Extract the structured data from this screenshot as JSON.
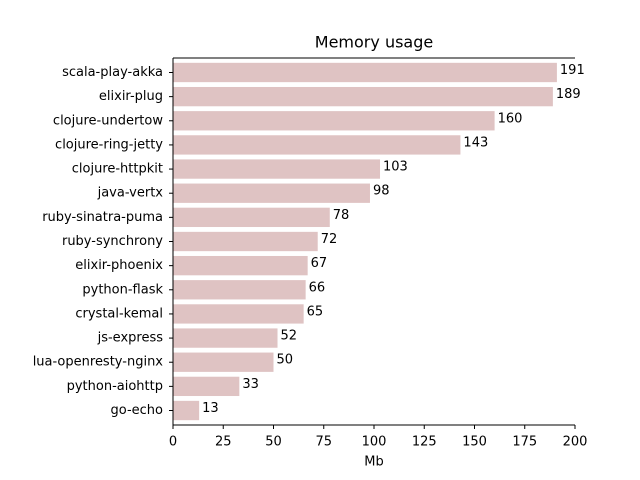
{
  "chart_data": {
    "type": "barh",
    "title": "Memory usage",
    "xlabel": "Mb",
    "categories": [
      "scala-play-akka",
      "elixir-plug",
      "clojure-undertow",
      "clojure-ring-jetty",
      "clojure-httpkit",
      "java-vertx",
      "ruby-sinatra-puma",
      "ruby-synchrony",
      "elixir-phoenix",
      "python-flask",
      "crystal-kemal",
      "js-express",
      "lua-openresty-nginx",
      "python-aiohttp",
      "go-echo"
    ],
    "values": [
      191,
      189,
      160,
      143,
      103,
      98,
      78,
      72,
      67,
      66,
      65,
      52,
      50,
      33,
      13
    ],
    "color": "#dfc3c3",
    "xlim": [
      0,
      200
    ],
    "xticks": [
      0,
      25,
      50,
      75,
      100,
      125,
      150,
      175,
      200
    ]
  }
}
